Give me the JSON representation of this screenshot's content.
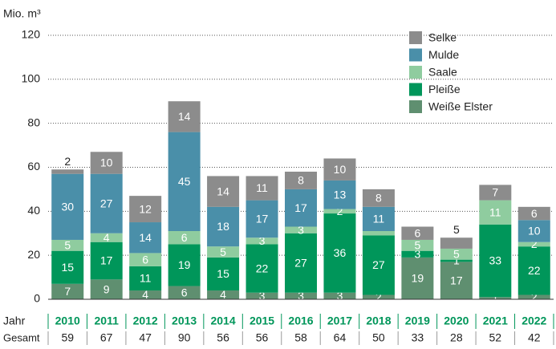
{
  "chart_data": {
    "type": "stacked_bar",
    "y_label": "Mio. m³",
    "categories": [
      "2010",
      "2011",
      "2012",
      "2013",
      "2014",
      "2015",
      "2016",
      "2017",
      "2018",
      "2019",
      "2020",
      "2021",
      "2022"
    ],
    "series": [
      {
        "name": "Weiße Elster",
        "color": "#5f8f70",
        "values": [
          7,
          9,
          4,
          6,
          4,
          3,
          3,
          3,
          2,
          19,
          17,
          1,
          2
        ]
      },
      {
        "name": "Pleiße",
        "color": "#00965a",
        "values": [
          15,
          17,
          11,
          19,
          15,
          22,
          27,
          36,
          27,
          3,
          1,
          33,
          22
        ]
      },
      {
        "name": "Saale",
        "color": "#8fcc9f",
        "values": [
          5,
          4,
          6,
          6,
          5,
          3,
          3,
          2,
          2,
          5,
          5,
          11,
          2
        ],
        "value_labels": [
          "5",
          "4",
          "6",
          "6",
          "5",
          "3",
          "3",
          "2",
          null,
          "5",
          "5",
          "11",
          "2"
        ]
      },
      {
        "name": "Mulde",
        "color": "#4a8fa9",
        "values": [
          30,
          27,
          14,
          45,
          18,
          17,
          17,
          13,
          11,
          0,
          0,
          0,
          10
        ],
        "value_labels": [
          "30",
          "27",
          "14",
          "45",
          "18",
          "17",
          "17",
          "13",
          "11",
          null,
          null,
          null,
          "10"
        ]
      },
      {
        "name": "Selke",
        "color": "#8c8c8c",
        "values": [
          2,
          10,
          12,
          14,
          14,
          11,
          8,
          10,
          8,
          6,
          5,
          7,
          6
        ]
      }
    ],
    "row_labels": [
      "Jahr",
      "Gesamt"
    ],
    "totals": [
      59,
      67,
      47,
      90,
      56,
      56,
      58,
      64,
      50,
      33,
      28,
      52,
      42
    ],
    "ylim": [
      0,
      122
    ],
    "yticks": [
      0,
      20,
      40,
      60,
      80,
      100,
      120
    ],
    "grid": true,
    "legend": "top-right"
  }
}
